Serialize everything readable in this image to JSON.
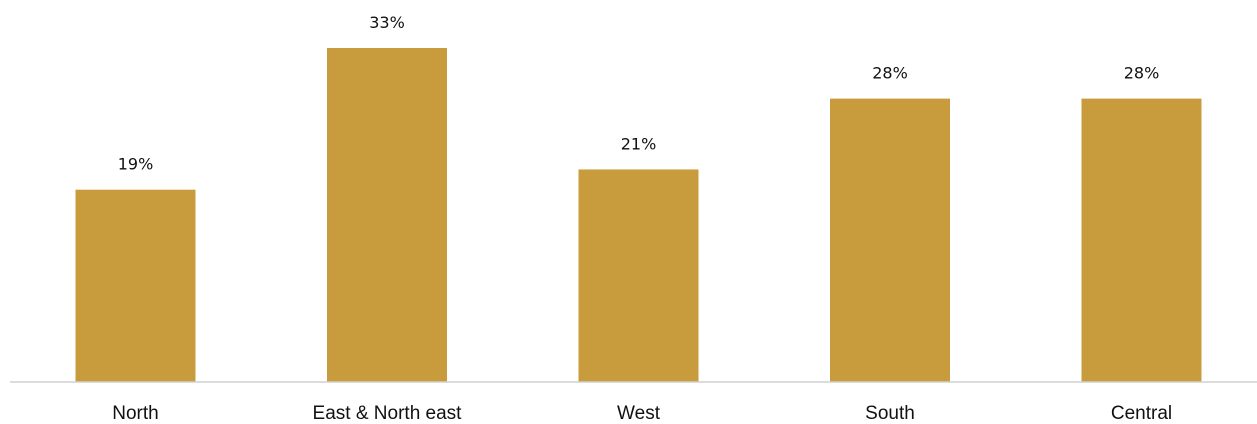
{
  "chart_data": {
    "type": "bar",
    "categories": [
      "North",
      "East & North east",
      "West",
      "South",
      "Central"
    ],
    "values": [
      19,
      33,
      21,
      28,
      28
    ],
    "value_labels": [
      "19%",
      "33%",
      "21%",
      "28%",
      "28%"
    ],
    "title": "",
    "xlabel": "",
    "ylabel": "",
    "ylim": [
      0,
      33
    ],
    "grid": false,
    "legend": "none",
    "bar_color": "#C89B3C",
    "axis_color": "#D0D0D0"
  }
}
